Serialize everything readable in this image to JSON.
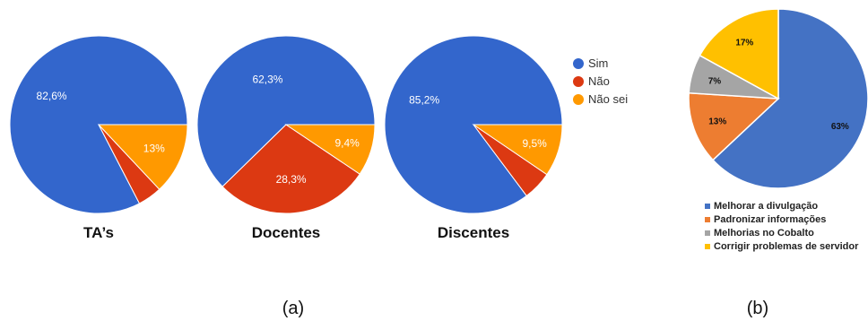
{
  "chart_data": [
    {
      "type": "pie",
      "title": "TA’s",
      "categories": [
        "Sim",
        "Não",
        "Não sei"
      ],
      "values": [
        82.6,
        4.4,
        13
      ],
      "labels": [
        "82,6%",
        "",
        "13%"
      ],
      "colors": [
        "#3366cc",
        "#dc3912",
        "#ff9900"
      ]
    },
    {
      "type": "pie",
      "title": "Docentes",
      "categories": [
        "Sim",
        "Não",
        "Não sei"
      ],
      "values": [
        62.3,
        28.3,
        9.4
      ],
      "labels": [
        "62,3%",
        "28,3%",
        "9,4%"
      ],
      "colors": [
        "#3366cc",
        "#dc3912",
        "#ff9900"
      ]
    },
    {
      "type": "pie",
      "title": "Discentes",
      "categories": [
        "Sim",
        "Não",
        "Não sei"
      ],
      "values": [
        85.2,
        5.3,
        9.5
      ],
      "labels": [
        "85,2%",
        "",
        "9,5%"
      ],
      "colors": [
        "#3366cc",
        "#dc3912",
        "#ff9900"
      ]
    },
    {
      "type": "pie",
      "title": "",
      "categories": [
        "Melhorar a divulgação",
        "Padronizar informações",
        "Melhorias no Cobalto",
        "Corrigir problemas de servidor"
      ],
      "values": [
        63,
        13,
        7,
        17
      ],
      "labels": [
        "63%",
        "13%",
        "7%",
        "17%"
      ],
      "colors": [
        "#4472c4",
        "#ed7d31",
        "#a5a5a5",
        "#ffc000"
      ],
      "legend": "bottom"
    }
  ],
  "legend_a": {
    "position": "right",
    "items": [
      {
        "label": "Sim",
        "color": "#3366cc"
      },
      {
        "label": "Não",
        "color": "#dc3912"
      },
      {
        "label": "Não sei",
        "color": "#ff9900"
      }
    ]
  },
  "captions": {
    "a": "(a)",
    "b": "(b)"
  }
}
